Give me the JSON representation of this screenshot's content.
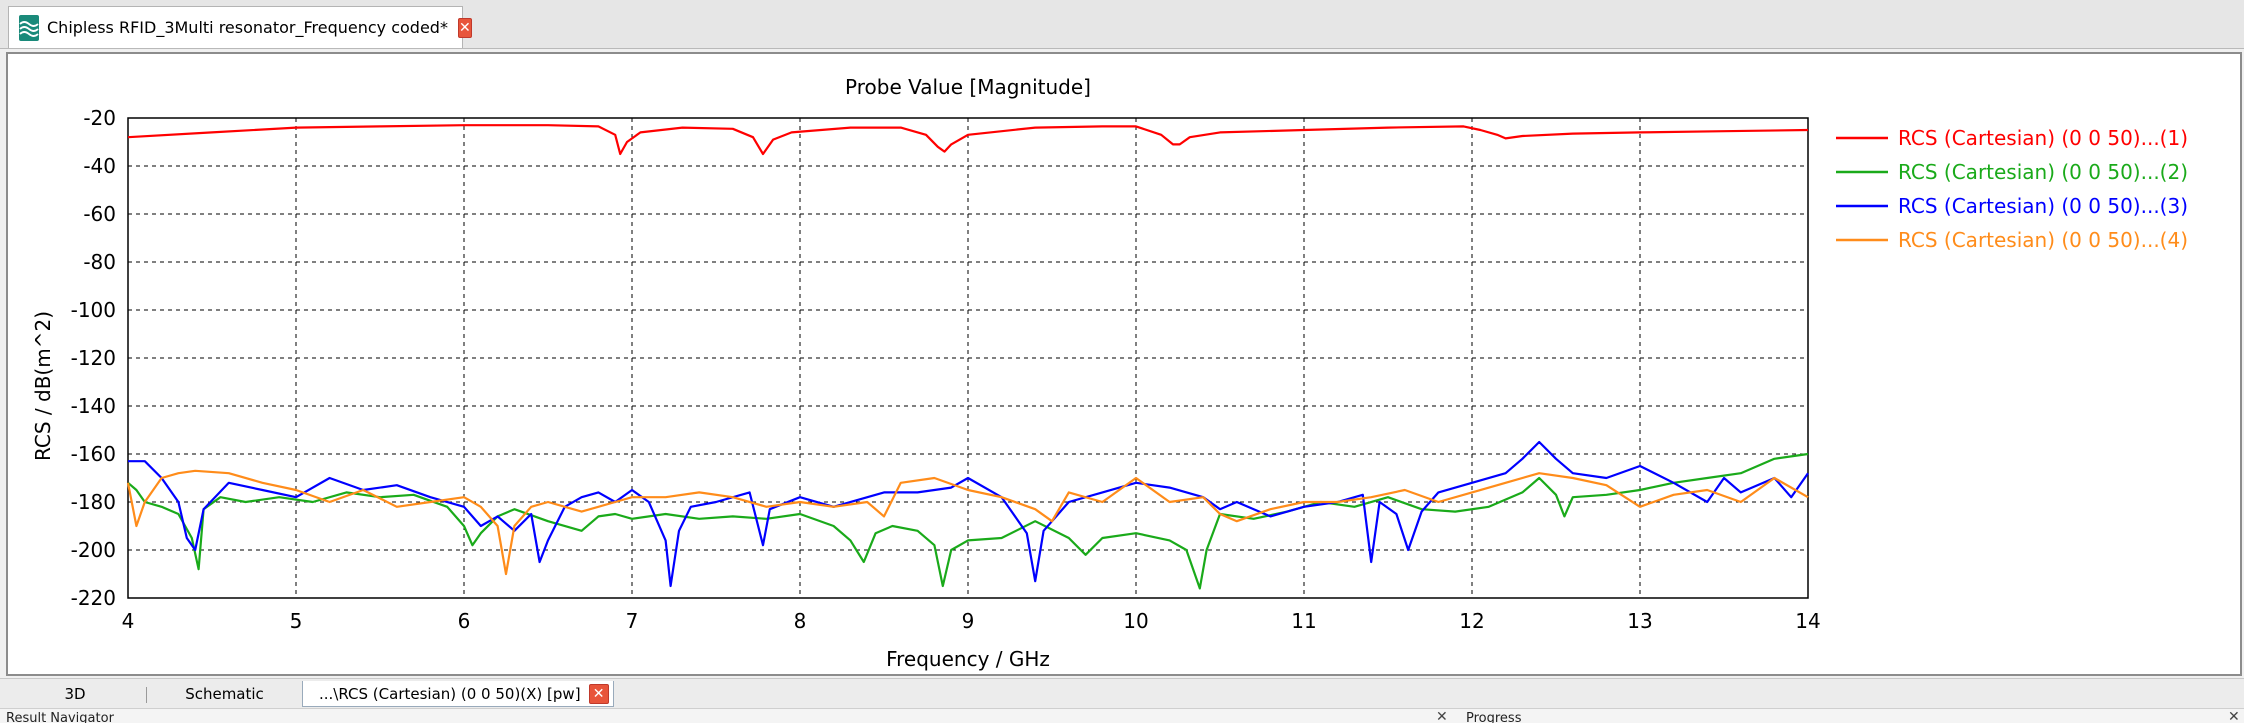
{
  "document_tab": {
    "title": "Chipless RFID_3Multi resonator_Frequency coded*",
    "close_symbol": "✕",
    "icon": "wave-icon"
  },
  "view_tabs": [
    {
      "label": "3D"
    },
    {
      "label": "Schematic"
    },
    {
      "label": "...\\RCS (Cartesian) (0 0 50)(X) [pw]",
      "close_symbol": "✕"
    }
  ],
  "bottom_panels": {
    "left_title": "Result Navigator",
    "right_title": "Progress",
    "close_symbol": "✕"
  },
  "colors": {
    "series1": "#ff0000",
    "series2": "#1aaa1a",
    "series3": "#0000ff",
    "series4": "#ff8c1a"
  },
  "chart_data": {
    "type": "line",
    "title": "Probe Value [Magnitude]",
    "xlabel": "Frequency / GHz",
    "ylabel": "RCS / dB(m^2)",
    "xlim": [
      4,
      14
    ],
    "ylim": [
      -220,
      -20
    ],
    "xticks": [
      4,
      5,
      6,
      7,
      8,
      9,
      10,
      11,
      12,
      13,
      14
    ],
    "yticks": [
      -20,
      -40,
      -60,
      -80,
      -100,
      -120,
      -140,
      -160,
      -180,
      -200,
      -220
    ],
    "grid": true,
    "legend_position": "right",
    "series": [
      {
        "name": "RCS (Cartesian) (0 0 50)...(1)",
        "color": "#ff0000",
        "x": [
          4.0,
          4.5,
          5.0,
          5.5,
          6.0,
          6.5,
          6.8,
          6.9,
          6.93,
          6.97,
          7.05,
          7.3,
          7.6,
          7.72,
          7.78,
          7.84,
          7.95,
          8.3,
          8.6,
          8.75,
          8.82,
          8.86,
          8.9,
          9.0,
          9.4,
          9.8,
          10.0,
          10.15,
          10.22,
          10.26,
          10.32,
          10.5,
          11.0,
          11.5,
          11.95,
          12.05,
          12.15,
          12.2,
          12.3,
          12.6,
          13.0,
          13.5,
          14.0
        ],
        "y": [
          -28,
          -26,
          -24,
          -23.5,
          -23,
          -23,
          -23.5,
          -27,
          -35,
          -30,
          -26,
          -24,
          -24.5,
          -28,
          -35,
          -29,
          -26,
          -24,
          -24,
          -27,
          -32,
          -34,
          -31,
          -27,
          -24,
          -23.5,
          -23.5,
          -27,
          -31,
          -31,
          -28,
          -26,
          -25,
          -24,
          -23.5,
          -25,
          -27,
          -28.5,
          -27.5,
          -26.5,
          -26,
          -25.5,
          -25
        ]
      },
      {
        "name": "RCS (Cartesian) (0 0 50)...(2)",
        "color": "#1aaa1a",
        "x": [
          4.0,
          4.05,
          4.1,
          4.2,
          4.3,
          4.38,
          4.42,
          4.45,
          4.55,
          4.7,
          4.9,
          5.1,
          5.3,
          5.5,
          5.7,
          5.9,
          6.0,
          6.05,
          6.1,
          6.2,
          6.3,
          6.5,
          6.7,
          6.8,
          6.9,
          7.0,
          7.2,
          7.4,
          7.6,
          7.8,
          8.0,
          8.2,
          8.3,
          8.38,
          8.45,
          8.55,
          8.7,
          8.8,
          8.85,
          8.9,
          9.0,
          9.2,
          9.4,
          9.6,
          9.7,
          9.8,
          10.0,
          10.2,
          10.3,
          10.38,
          10.42,
          10.5,
          10.7,
          10.9,
          11.1,
          11.3,
          11.5,
          11.7,
          11.9,
          12.1,
          12.3,
          12.4,
          12.5,
          12.55,
          12.6,
          12.8,
          13.0,
          13.2,
          13.4,
          13.6,
          13.8,
          14.0
        ],
        "y": [
          -172,
          -175,
          -180,
          -182,
          -185,
          -195,
          -208,
          -183,
          -178,
          -180,
          -178,
          -180,
          -176,
          -178,
          -177,
          -182,
          -190,
          -198,
          -193,
          -186,
          -183,
          -188,
          -192,
          -186,
          -185,
          -187,
          -185,
          -187,
          -186,
          -187,
          -185,
          -190,
          -196,
          -205,
          -193,
          -190,
          -192,
          -198,
          -215,
          -200,
          -196,
          -195,
          -188,
          -195,
          -202,
          -195,
          -193,
          -196,
          -200,
          -216,
          -200,
          -185,
          -187,
          -184,
          -180,
          -182,
          -178,
          -183,
          -184,
          -182,
          -176,
          -170,
          -177,
          -186,
          -178,
          -177,
          -175,
          -172,
          -170,
          -168,
          -162,
          -160
        ]
      },
      {
        "name": "RCS (Cartesian) (0 0 50)...(3)",
        "color": "#0000ff",
        "x": [
          4.0,
          4.1,
          4.2,
          4.3,
          4.35,
          4.4,
          4.45,
          4.6,
          4.8,
          5.0,
          5.2,
          5.4,
          5.6,
          5.8,
          6.0,
          6.1,
          6.2,
          6.3,
          6.4,
          6.45,
          6.5,
          6.6,
          6.7,
          6.8,
          6.9,
          7.0,
          7.1,
          7.2,
          7.23,
          7.28,
          7.35,
          7.5,
          7.7,
          7.78,
          7.82,
          8.0,
          8.2,
          8.5,
          8.7,
          8.9,
          9.0,
          9.2,
          9.35,
          9.4,
          9.45,
          9.6,
          9.8,
          10.0,
          10.2,
          10.4,
          10.5,
          10.6,
          10.8,
          11.0,
          11.2,
          11.35,
          11.4,
          11.45,
          11.55,
          11.62,
          11.7,
          11.8,
          12.0,
          12.2,
          12.3,
          12.4,
          12.5,
          12.6,
          12.8,
          13.0,
          13.2,
          13.4,
          13.5,
          13.6,
          13.8,
          13.9,
          14.0
        ],
        "y": [
          -163,
          -163,
          -170,
          -180,
          -195,
          -200,
          -183,
          -172,
          -175,
          -178,
          -170,
          -175,
          -173,
          -178,
          -182,
          -190,
          -186,
          -192,
          -185,
          -205,
          -196,
          -182,
          -178,
          -176,
          -180,
          -175,
          -180,
          -196,
          -215,
          -192,
          -182,
          -180,
          -176,
          -198,
          -183,
          -178,
          -182,
          -176,
          -176,
          -174,
          -170,
          -178,
          -193,
          -213,
          -192,
          -180,
          -176,
          -172,
          -174,
          -178,
          -183,
          -180,
          -186,
          -182,
          -180,
          -177,
          -205,
          -180,
          -185,
          -200,
          -184,
          -176,
          -172,
          -168,
          -162,
          -155,
          -162,
          -168,
          -170,
          -165,
          -172,
          -180,
          -170,
          -176,
          -170,
          -178,
          -168
        ]
      },
      {
        "name": "RCS (Cartesian) (0 0 50)...(4)",
        "color": "#ff8c1a",
        "x": [
          4.0,
          4.05,
          4.1,
          4.2,
          4.3,
          4.4,
          4.6,
          4.8,
          5.0,
          5.2,
          5.4,
          5.6,
          5.8,
          6.0,
          6.1,
          6.2,
          6.25,
          6.3,
          6.4,
          6.5,
          6.7,
          6.9,
          7.0,
          7.2,
          7.4,
          7.6,
          7.8,
          8.0,
          8.2,
          8.4,
          8.5,
          8.6,
          8.8,
          9.0,
          9.2,
          9.4,
          9.5,
          9.6,
          9.8,
          10.0,
          10.2,
          10.4,
          10.5,
          10.6,
          10.8,
          11.0,
          11.2,
          11.4,
          11.6,
          11.8,
          12.0,
          12.2,
          12.4,
          12.6,
          12.8,
          13.0,
          13.2,
          13.4,
          13.6,
          13.8,
          14.0
        ],
        "y": [
          -172,
          -190,
          -180,
          -170,
          -168,
          -167,
          -168,
          -172,
          -175,
          -180,
          -175,
          -182,
          -180,
          -178,
          -182,
          -190,
          -210,
          -190,
          -182,
          -180,
          -184,
          -180,
          -178,
          -178,
          -176,
          -178,
          -182,
          -180,
          -182,
          -180,
          -186,
          -172,
          -170,
          -175,
          -178,
          -183,
          -188,
          -176,
          -180,
          -170,
          -180,
          -178,
          -185,
          -188,
          -183,
          -180,
          -180,
          -178,
          -175,
          -180,
          -176,
          -172,
          -168,
          -170,
          -173,
          -182,
          -177,
          -175,
          -180,
          -170,
          -178
        ]
      }
    ]
  }
}
